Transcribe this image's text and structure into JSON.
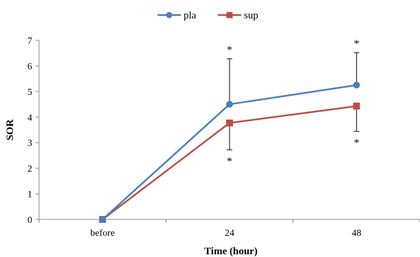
{
  "chart_data": {
    "type": "line",
    "categories": [
      "before",
      "24",
      "48"
    ],
    "series": [
      {
        "name": "pla",
        "color": "#4a7ebb",
        "marker": "circle",
        "values": [
          0,
          4.5,
          5.25
        ],
        "error_plus": [
          0,
          1.78,
          1.27
        ],
        "annotations": [
          "",
          "*",
          "*"
        ]
      },
      {
        "name": "sup",
        "color": "#be4b48",
        "marker": "square",
        "values": [
          0,
          3.77,
          4.43
        ],
        "error_minus": [
          0,
          1.05,
          0.99
        ],
        "annotations": [
          "",
          "*",
          "*"
        ]
      }
    ],
    "title": "",
    "xlabel": "Time (hour)",
    "ylabel": "SOR",
    "ylim": [
      0,
      7
    ],
    "yticks": [
      "0",
      "1",
      "2",
      "3",
      "4",
      "5",
      "6",
      "7"
    ],
    "grid": false,
    "legend_position": "top-center"
  }
}
